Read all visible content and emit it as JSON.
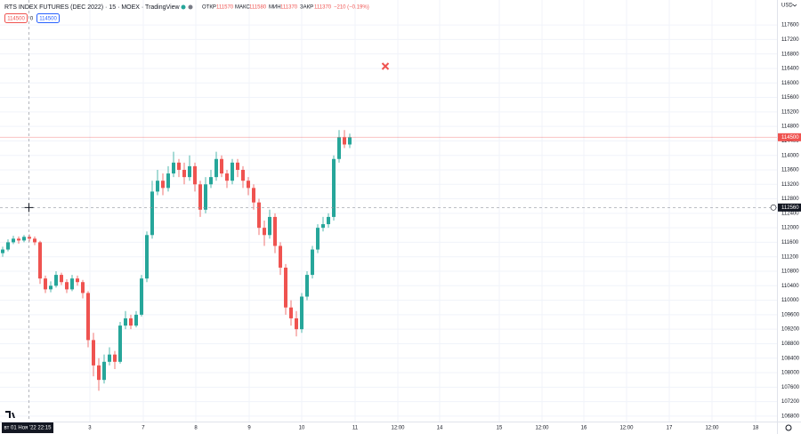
{
  "chart_data": {
    "type": "candlestick",
    "title": "RTS INDEX FUTURES (DEC 2022) · 15 · MOEX · TradingView",
    "legend": {
      "open_label": "ОТКР",
      "open": 111570,
      "high_label": "МАКС",
      "high": 111580,
      "low_label": "МИН",
      "low": 111370,
      "close_label": "ЗАКР",
      "close": 111370,
      "change": "−210 (−0.19%)"
    },
    "order_panel": {
      "sell": 114500,
      "spread": 0,
      "buy": 114500
    },
    "currency": "USD",
    "up_color": "#26a69a",
    "down_color": "#ef5350",
    "open": [
      111300,
      111400,
      111600,
      111700,
      111650,
      111750,
      111700,
      111600,
      110600,
      110300,
      110400,
      110700,
      110500,
      110300,
      110600,
      110500,
      110200,
      108900,
      108200,
      107800,
      108300,
      108500,
      108300,
      109300,
      109500,
      109300,
      109600,
      110600,
      111800,
      113000,
      113300,
      113100,
      113500,
      113800,
      113600,
      113400,
      113700,
      113200,
      112500,
      113200,
      113400,
      113900,
      113500,
      113300,
      113800,
      113600,
      113300,
      113100,
      112700,
      112000,
      111800,
      112300,
      111500,
      110900,
      109800,
      109500,
      109200,
      110100,
      110700,
      111400,
      112000,
      112100,
      112300,
      113900,
      114500,
      114300
    ],
    "high": [
      111480,
      111680,
      111780,
      111760,
      111800,
      111820,
      111760,
      111640,
      110680,
      110520,
      110800,
      110760,
      110580,
      110700,
      110680,
      110560,
      110250,
      109100,
      108400,
      108500,
      108700,
      108600,
      109400,
      109700,
      109600,
      109700,
      110700,
      111900,
      113300,
      113600,
      113500,
      113700,
      114100,
      113900,
      113800,
      114000,
      113800,
      113300,
      113400,
      113600,
      114100,
      114000,
      113600,
      113900,
      113900,
      113700,
      113400,
      113200,
      112800,
      112200,
      112500,
      112400,
      111600,
      111000,
      110000,
      109700,
      110200,
      110800,
      111500,
      112100,
      112300,
      112400,
      114000,
      114700,
      114700,
      114600
    ],
    "low": [
      111200,
      111350,
      111550,
      111560,
      111600,
      111620,
      111520,
      110450,
      110200,
      110220,
      110350,
      110420,
      110200,
      110250,
      110400,
      110050,
      108700,
      107900,
      107500,
      107700,
      108200,
      108100,
      108250,
      109200,
      109200,
      109250,
      109550,
      110500,
      111700,
      112900,
      112900,
      113000,
      113400,
      113400,
      113200,
      113300,
      113000,
      112300,
      112400,
      113100,
      113300,
      113400,
      113100,
      113200,
      113400,
      113100,
      112900,
      112500,
      111800,
      111500,
      111700,
      111300,
      110700,
      109600,
      109300,
      109000,
      109100,
      110000,
      110600,
      111300,
      111900,
      112000,
      112200,
      113800,
      114200,
      114200
    ],
    "close": [
      111400,
      111600,
      111700,
      111650,
      111750,
      111700,
      111600,
      110600,
      110300,
      110400,
      110700,
      110500,
      110300,
      110600,
      110500,
      110200,
      108900,
      108200,
      107800,
      108300,
      108500,
      108300,
      109300,
      109500,
      109300,
      109600,
      110600,
      111800,
      113000,
      113300,
      113100,
      113500,
      113800,
      113600,
      113400,
      113700,
      113200,
      112500,
      113200,
      113400,
      113900,
      113500,
      113300,
      113800,
      113600,
      113300,
      113100,
      112700,
      112000,
      111800,
      112300,
      111500,
      110900,
      109800,
      109500,
      109200,
      110100,
      110700,
      111400,
      112000,
      112100,
      112300,
      113900,
      114500,
      114300,
      114500
    ],
    "last_price": 114500,
    "crosshair": {
      "price": 112560,
      "time": "вт 01 Ноя '22 22:15"
    },
    "xlim": [
      -0.5,
      145
    ],
    "xticks": [
      {
        "value": 16.33,
        "label": "3"
      },
      {
        "value": 26.33,
        "label": "7"
      },
      {
        "value": 36.17,
        "label": "8"
      },
      {
        "value": 46.17,
        "label": "9"
      },
      {
        "value": 56,
        "label": "10"
      },
      {
        "value": 66,
        "label": "11"
      },
      {
        "value": 74,
        "label": "12:00"
      },
      {
        "value": 81.83,
        "label": "14"
      },
      {
        "value": 93,
        "label": "15"
      },
      {
        "value": 101,
        "label": "12:00"
      },
      {
        "value": 108.83,
        "label": "16"
      },
      {
        "value": 116.83,
        "label": "12:00"
      },
      {
        "value": 124.83,
        "label": "17"
      },
      {
        "value": 132.83,
        "label": "12:00"
      },
      {
        "value": 141,
        "label": "18"
      }
    ],
    "ylim": [
      106650,
      118290
    ],
    "yticks": [
      106800,
      107200,
      107600,
      108000,
      108400,
      108800,
      109200,
      109600,
      110000,
      110400,
      110800,
      111200,
      111600,
      112000,
      112400,
      112800,
      113200,
      113600,
      114000,
      114400,
      114800,
      115200,
      115600,
      116000,
      116400,
      116800,
      117200,
      117600
    ],
    "grid": true
  }
}
